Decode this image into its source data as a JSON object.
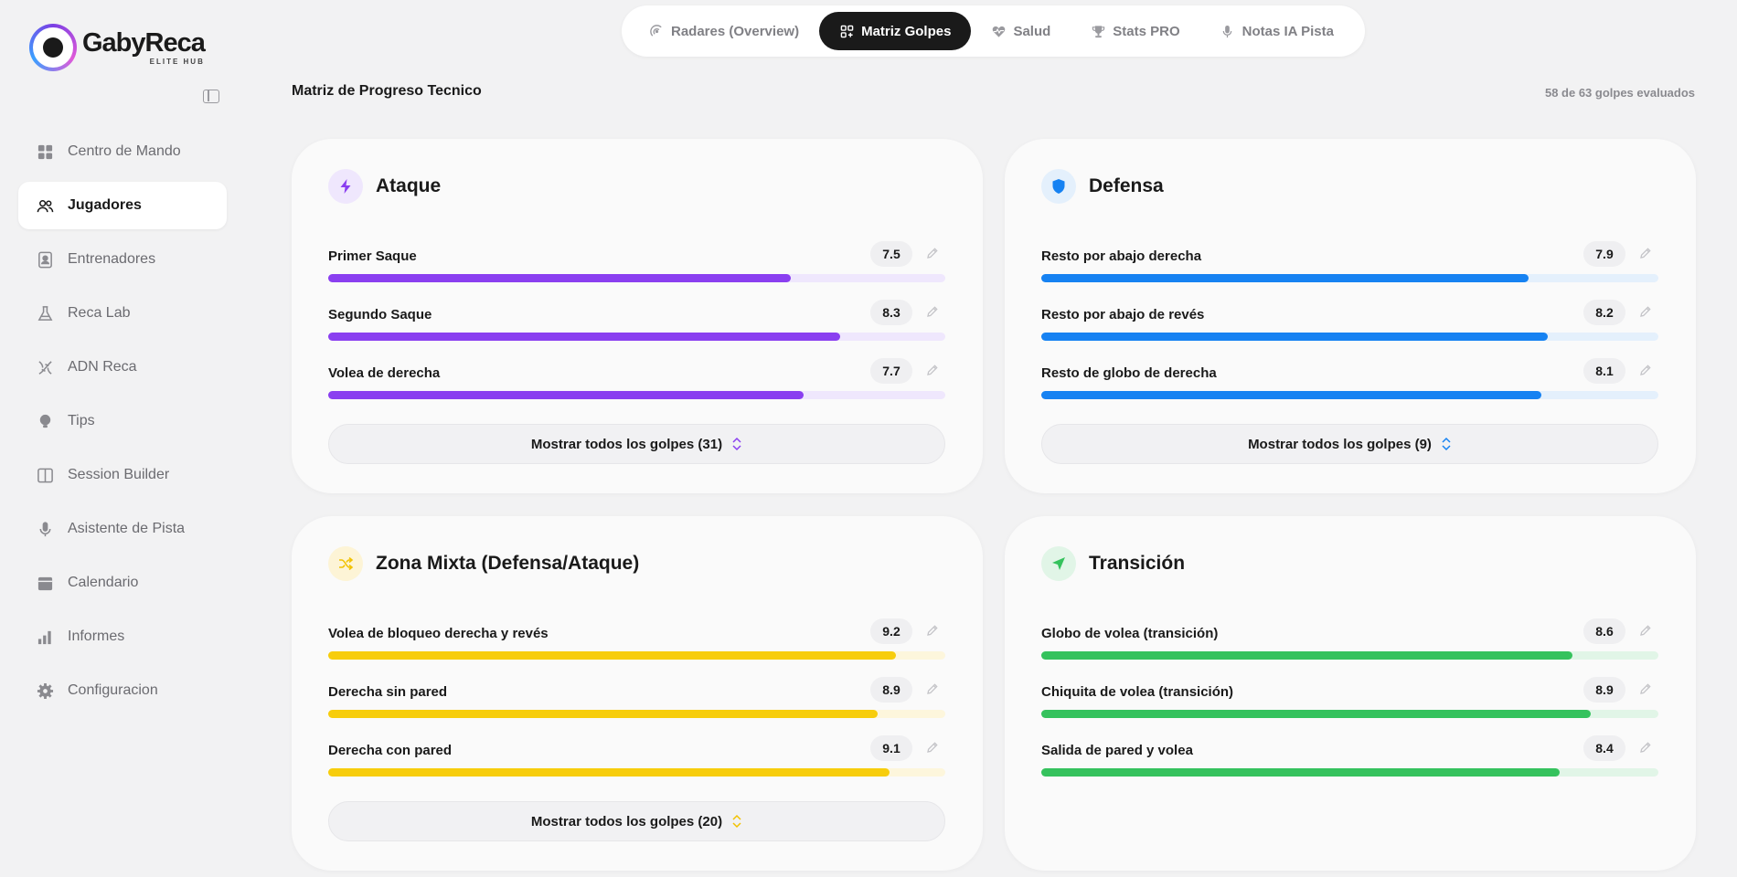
{
  "brand": {
    "name": "GabyReca",
    "tagline": "ELITE HUB"
  },
  "sidebar": {
    "items": [
      {
        "label": "Centro de Mando",
        "icon": "grid-icon",
        "active": false
      },
      {
        "label": "Jugadores",
        "icon": "users-icon",
        "active": true
      },
      {
        "label": "Entrenadores",
        "icon": "badge-icon",
        "active": false
      },
      {
        "label": "Reca Lab",
        "icon": "flask-icon",
        "active": false
      },
      {
        "label": "ADN Reca",
        "icon": "dna-icon",
        "active": false
      },
      {
        "label": "Tips",
        "icon": "lightbulb-icon",
        "active": false
      },
      {
        "label": "Session Builder",
        "icon": "columns-icon",
        "active": false
      },
      {
        "label": "Asistente de Pista",
        "icon": "microphone-icon",
        "active": false
      },
      {
        "label": "Calendario",
        "icon": "calendar-icon",
        "active": false
      },
      {
        "label": "Informes",
        "icon": "bar-chart-icon",
        "active": false
      },
      {
        "label": "Configuracion",
        "icon": "gear-icon",
        "active": false
      }
    ]
  },
  "tabs": [
    {
      "label": "Radares (Overview)",
      "icon": "radar-icon",
      "active": false
    },
    {
      "label": "Matriz Golpes",
      "icon": "matrix-icon",
      "active": true
    },
    {
      "label": "Salud",
      "icon": "heart-pulse-icon",
      "active": false
    },
    {
      "label": "Stats PRO",
      "icon": "trophy-icon",
      "active": false
    },
    {
      "label": "Notas IA Pista",
      "icon": "microphone-icon",
      "active": false
    }
  ],
  "header": {
    "title": "Matriz de Progreso Tecnico",
    "count": "58 de 63 golpes evaluados"
  },
  "colors": {
    "ataque": "#8a3ff0",
    "defensa": "#1682f2",
    "mixta": "#f7cd0c",
    "transicion": "#35c25d"
  },
  "cards": [
    {
      "title": "Ataque",
      "icon": "lightning-icon",
      "color": "#8a3ff0",
      "track": "#efe7fd",
      "iconBg": "#efe7fd",
      "rows": [
        {
          "label": "Primer Saque",
          "score": "7.5",
          "value": 7.5
        },
        {
          "label": "Segundo Saque",
          "score": "8.3",
          "value": 8.3
        },
        {
          "label": "Volea de derecha",
          "score": "7.7",
          "value": 7.7
        }
      ],
      "showAll": "Mostrar todos los golpes (31)"
    },
    {
      "title": "Defensa",
      "icon": "shield-icon",
      "color": "#1682f2",
      "track": "#e4f0fc",
      "iconBg": "#e4f0fc",
      "rows": [
        {
          "label": "Resto por abajo derecha",
          "score": "7.9",
          "value": 7.9
        },
        {
          "label": "Resto por abajo de revés",
          "score": "8.2",
          "value": 8.2
        },
        {
          "label": "Resto de globo de derecha",
          "score": "8.1",
          "value": 8.1
        }
      ],
      "showAll": "Mostrar todos los golpes (9)"
    },
    {
      "title": "Zona Mixta (Defensa/Ataque)",
      "icon": "shuffle-icon",
      "color": "#f7cd0c",
      "track": "#fdf6dc",
      "iconBg": "#fdf4d6",
      "rows": [
        {
          "label": "Volea de bloqueo derecha y revés",
          "score": "9.2",
          "value": 9.2
        },
        {
          "label": "Derecha sin pared",
          "score": "8.9",
          "value": 8.9
        },
        {
          "label": "Derecha con pared",
          "score": "9.1",
          "value": 9.1
        }
      ],
      "showAll": "Mostrar todos los golpes (20)"
    },
    {
      "title": "Transición",
      "icon": "navigation-arrow-icon",
      "color": "#35c25d",
      "track": "#e1f5e7",
      "iconBg": "#e1f5e7",
      "rows": [
        {
          "label": "Globo de volea (transición)",
          "score": "8.6",
          "value": 8.6
        },
        {
          "label": "Chiquita de volea (transición)",
          "score": "8.9",
          "value": 8.9
        },
        {
          "label": "Salida de pared y volea",
          "score": "8.4",
          "value": 8.4
        }
      ],
      "showAll": ""
    }
  ]
}
